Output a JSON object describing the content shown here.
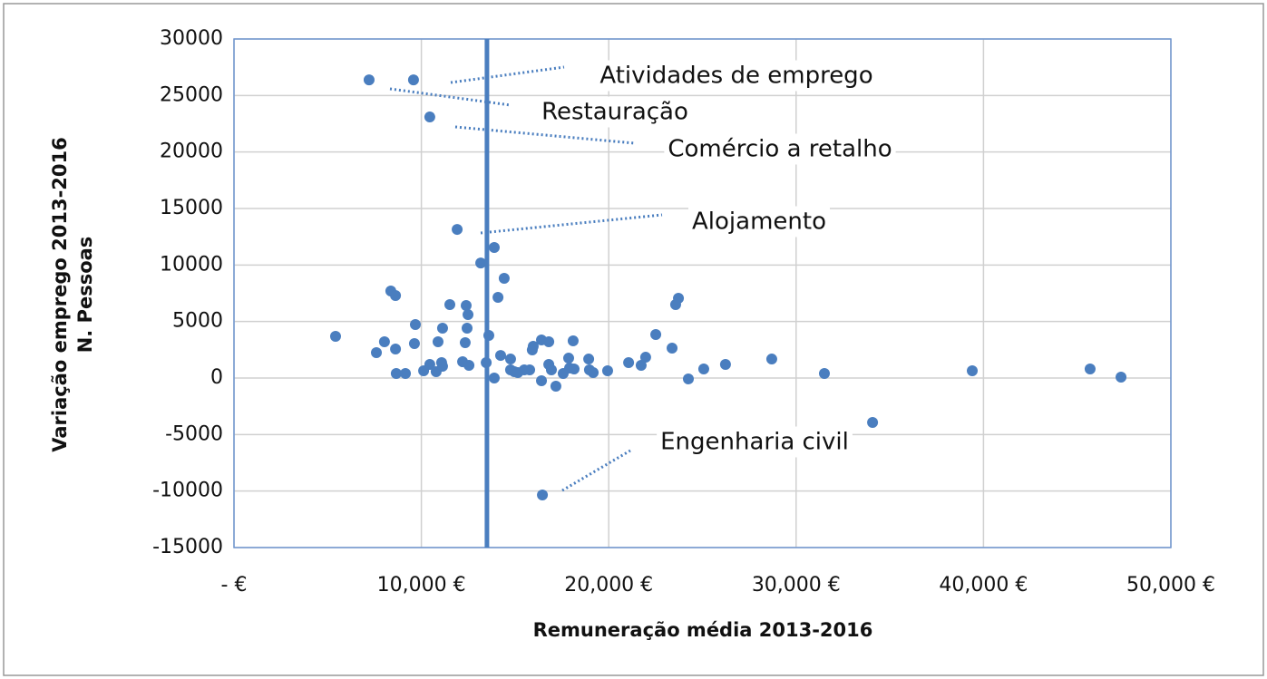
{
  "chart_data": {
    "type": "scatter",
    "xlabel": "Remuneração média 2013-2016",
    "ylabel": [
      "Variação emprego 2013-2016",
      "N. Pessoas"
    ],
    "x": [
      5420,
      7210,
      7600,
      8030,
      8370,
      8620,
      8620,
      8660,
      9150,
      9580,
      9630,
      9680,
      10120,
      10450,
      10450,
      10790,
      10890,
      11080,
      11130,
      11130,
      11520,
      11910,
      12200,
      12340,
      12390,
      12440,
      12490,
      12540,
      13170,
      13460,
      13600,
      13890,
      13890,
      14090,
      14230,
      14420,
      14760,
      14760,
      14960,
      15150,
      15490,
      15780,
      15920,
      15970,
      16410,
      16410,
      16460,
      16800,
      16800,
      16940,
      17180,
      17570,
      17860,
      17910,
      18100,
      18150,
      18930,
      18970,
      19170,
      19940,
      21060,
      21730,
      21970,
      22510,
      23380,
      23570,
      23720,
      24250,
      25070,
      26230,
      28700,
      31510,
      34080,
      39400,
      45690,
      47340
    ],
    "values": [
      3690,
      26380,
      2250,
      3210,
      7700,
      7300,
      2570,
      400,
      400,
      26380,
      3050,
      4730,
      640,
      23100,
      1200,
      560,
      3210,
      1360,
      4410,
      1040,
      6500,
      13150,
      1440,
      3130,
      6420,
      4410,
      5610,
      1120,
      10180,
      1360,
      3770,
      11550,
      0,
      7140,
      2000,
      8820,
      1680,
      720,
      560,
      480,
      720,
      720,
      2490,
      2810,
      -240,
      3370,
      -10350,
      3210,
      1200,
      720,
      -720,
      400,
      1760,
      880,
      3290,
      800,
      1680,
      720,
      480,
      640,
      1360,
      1120,
      1840,
      3850,
      2650,
      6500,
      7060,
      -80,
      800,
      1200,
      1680,
      400,
      -3930,
      640,
      800,
      80
    ],
    "color": "#4a7ebf",
    "vline": 13500,
    "annotations": [
      "Atividades de emprego",
      "Restauração",
      "Comércio a retalho",
      "Alojamento",
      "Engenharia civil"
    ],
    "xlim": [
      0,
      50000
    ],
    "xticks": [
      {
        "value": 0,
        "label": "-   €"
      },
      {
        "value": 10000,
        "label": "10,000 €"
      },
      {
        "value": 20000,
        "label": "20,000 €"
      },
      {
        "value": 30000,
        "label": "30,000 €"
      },
      {
        "value": 40000,
        "label": "40,000 €"
      },
      {
        "value": 50000,
        "label": "50,000 €"
      }
    ],
    "ylim": [
      -15000,
      30000
    ],
    "yticks": [
      -15000,
      -10000,
      -5000,
      0,
      5000,
      10000,
      15000,
      20000,
      25000,
      30000
    ],
    "grid": true
  }
}
